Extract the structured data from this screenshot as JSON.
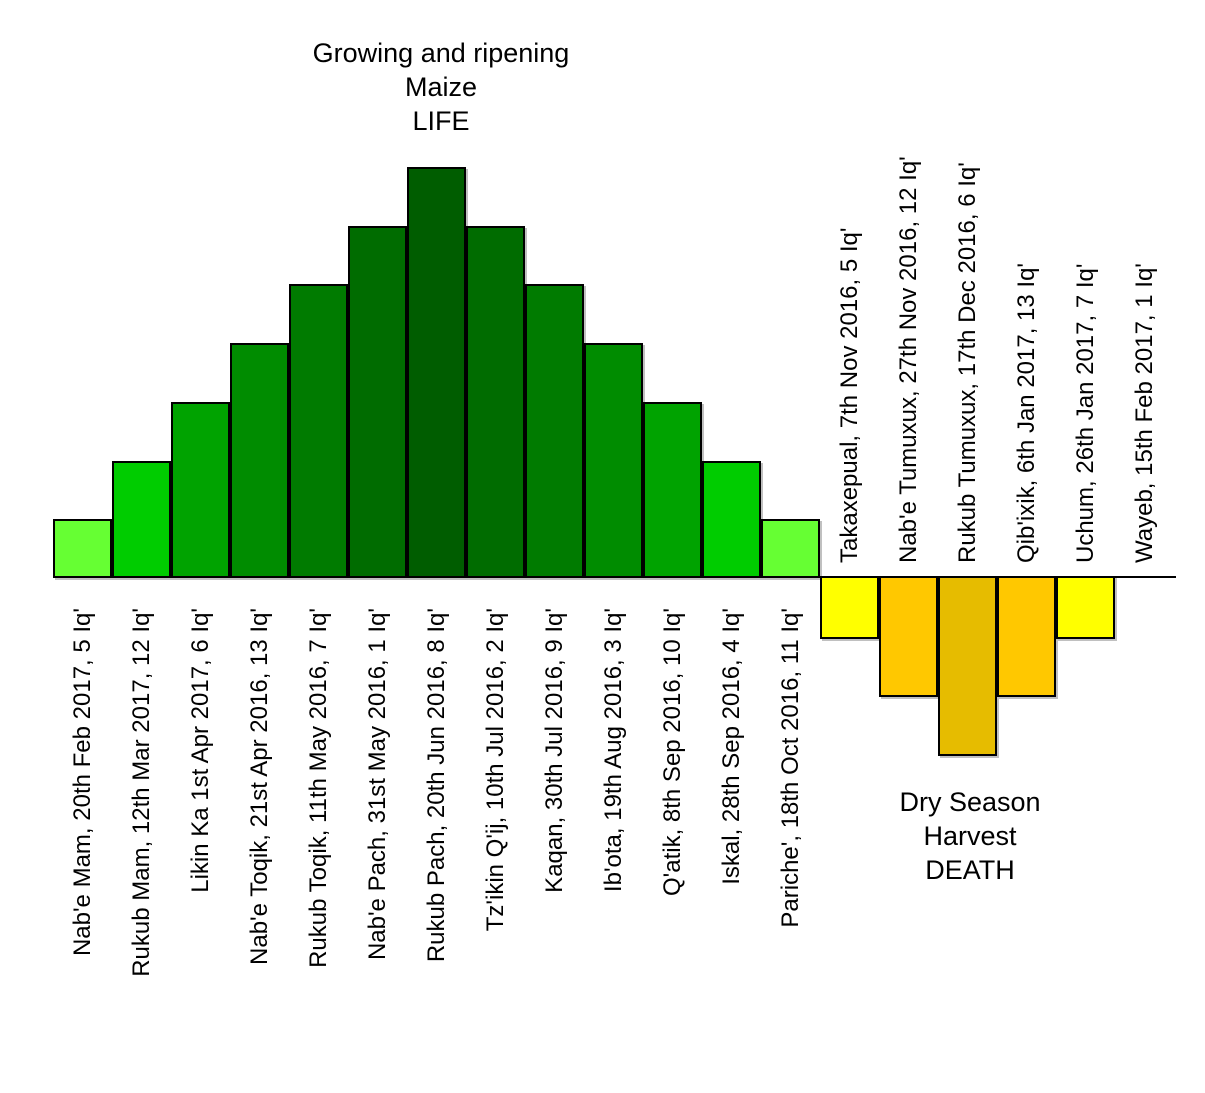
{
  "chart_data": {
    "type": "bar",
    "description": "Maya agricultural calendar bar chart: green growing-season months rise above the axis, yellow/gold dry-season months hang below it",
    "axis": {
      "grid": false,
      "baseline": 0,
      "tick_labels": "none visible",
      "value_scale": "relative bar height units (1-7)"
    },
    "life": {
      "title_lines": [
        "Growing and ripening",
        "Maize",
        "LIFE"
      ],
      "bars": [
        {
          "label": "Nab'e Mam, 20th Feb 2017, 5 Iq'",
          "value": 1,
          "color": "#66FF33"
        },
        {
          "label": "Rukub Mam, 12th Mar 2017, 12 Iq'",
          "value": 2,
          "color": "#00CC00"
        },
        {
          "label": "Likin Ka 1st Apr 2017, 6 Iq'",
          "value": 3,
          "color": "#00A300"
        },
        {
          "label": "Nab'e Toqik, 21st Apr 2016, 13 Iq'",
          "value": 4,
          "color": "#008C00"
        },
        {
          "label": "Rukub Toqik, 11th May 2016, 7 Iq'",
          "value": 5,
          "color": "#007B00"
        },
        {
          "label": "Nab'e Pach, 31st May 2016, 1 Iq'",
          "value": 6,
          "color": "#006C00"
        },
        {
          "label": "Rukub Pach, 20th Jun 2016, 8 Iq'",
          "value": 7,
          "color": "#005D00"
        },
        {
          "label": "Tz'ikin Q'ij, 10th Jul 2016, 2 Iq'",
          "value": 6,
          "color": "#006C00"
        },
        {
          "label": "Kaqan, 30th Jul 2016, 9 Iq'",
          "value": 5,
          "color": "#007B00"
        },
        {
          "label": "Ib'ota, 19th Aug 2016, 3 Iq'",
          "value": 4,
          "color": "#008C00"
        },
        {
          "label": "Q'atik, 8th Sep 2016, 10 Iq'",
          "value": 3,
          "color": "#00A300"
        },
        {
          "label": "Iskal, 28th Sep 2016, 4 Iq'",
          "value": 2,
          "color": "#00CC00"
        },
        {
          "label": "Pariche', 18th Oct 2016, 11 Iq'",
          "value": 1,
          "color": "#66FF33"
        }
      ]
    },
    "death": {
      "title_lines": [
        "Dry Season",
        "Harvest",
        "DEATH"
      ],
      "bars": [
        {
          "label": "Takaxepual, 7th Nov 2016, 5 Iq'",
          "value": -1,
          "color": "#FFFF00"
        },
        {
          "label": "Nab'e Tumuxux, 27th Nov 2016, 12 Iq'",
          "value": -2,
          "color": "#FFC800"
        },
        {
          "label": "Rukub Tumuxux, 17th Dec 2016, 6 Iq'",
          "value": -3,
          "color": "#E6BC00"
        },
        {
          "label": "Qib'ixik, 6th Jan 2017, 13 Iq'",
          "value": -2,
          "color": "#FFC800"
        },
        {
          "label": "Uchum, 26th Jan 2017, 7 Iq'",
          "value": -1,
          "color": "#FFFF00"
        },
        {
          "label": "Wayeb, 15th Feb 2017, 1 Iq'",
          "value": 0,
          "color": "#FFFF00"
        }
      ]
    },
    "colors": {
      "life_light": "#66FF33",
      "life_dark": "#005D00",
      "death_yellow": "#FFFF00",
      "death_gold": "#FFC800",
      "death_dark_gold": "#E6BC00",
      "bar_border": "#000000"
    }
  }
}
